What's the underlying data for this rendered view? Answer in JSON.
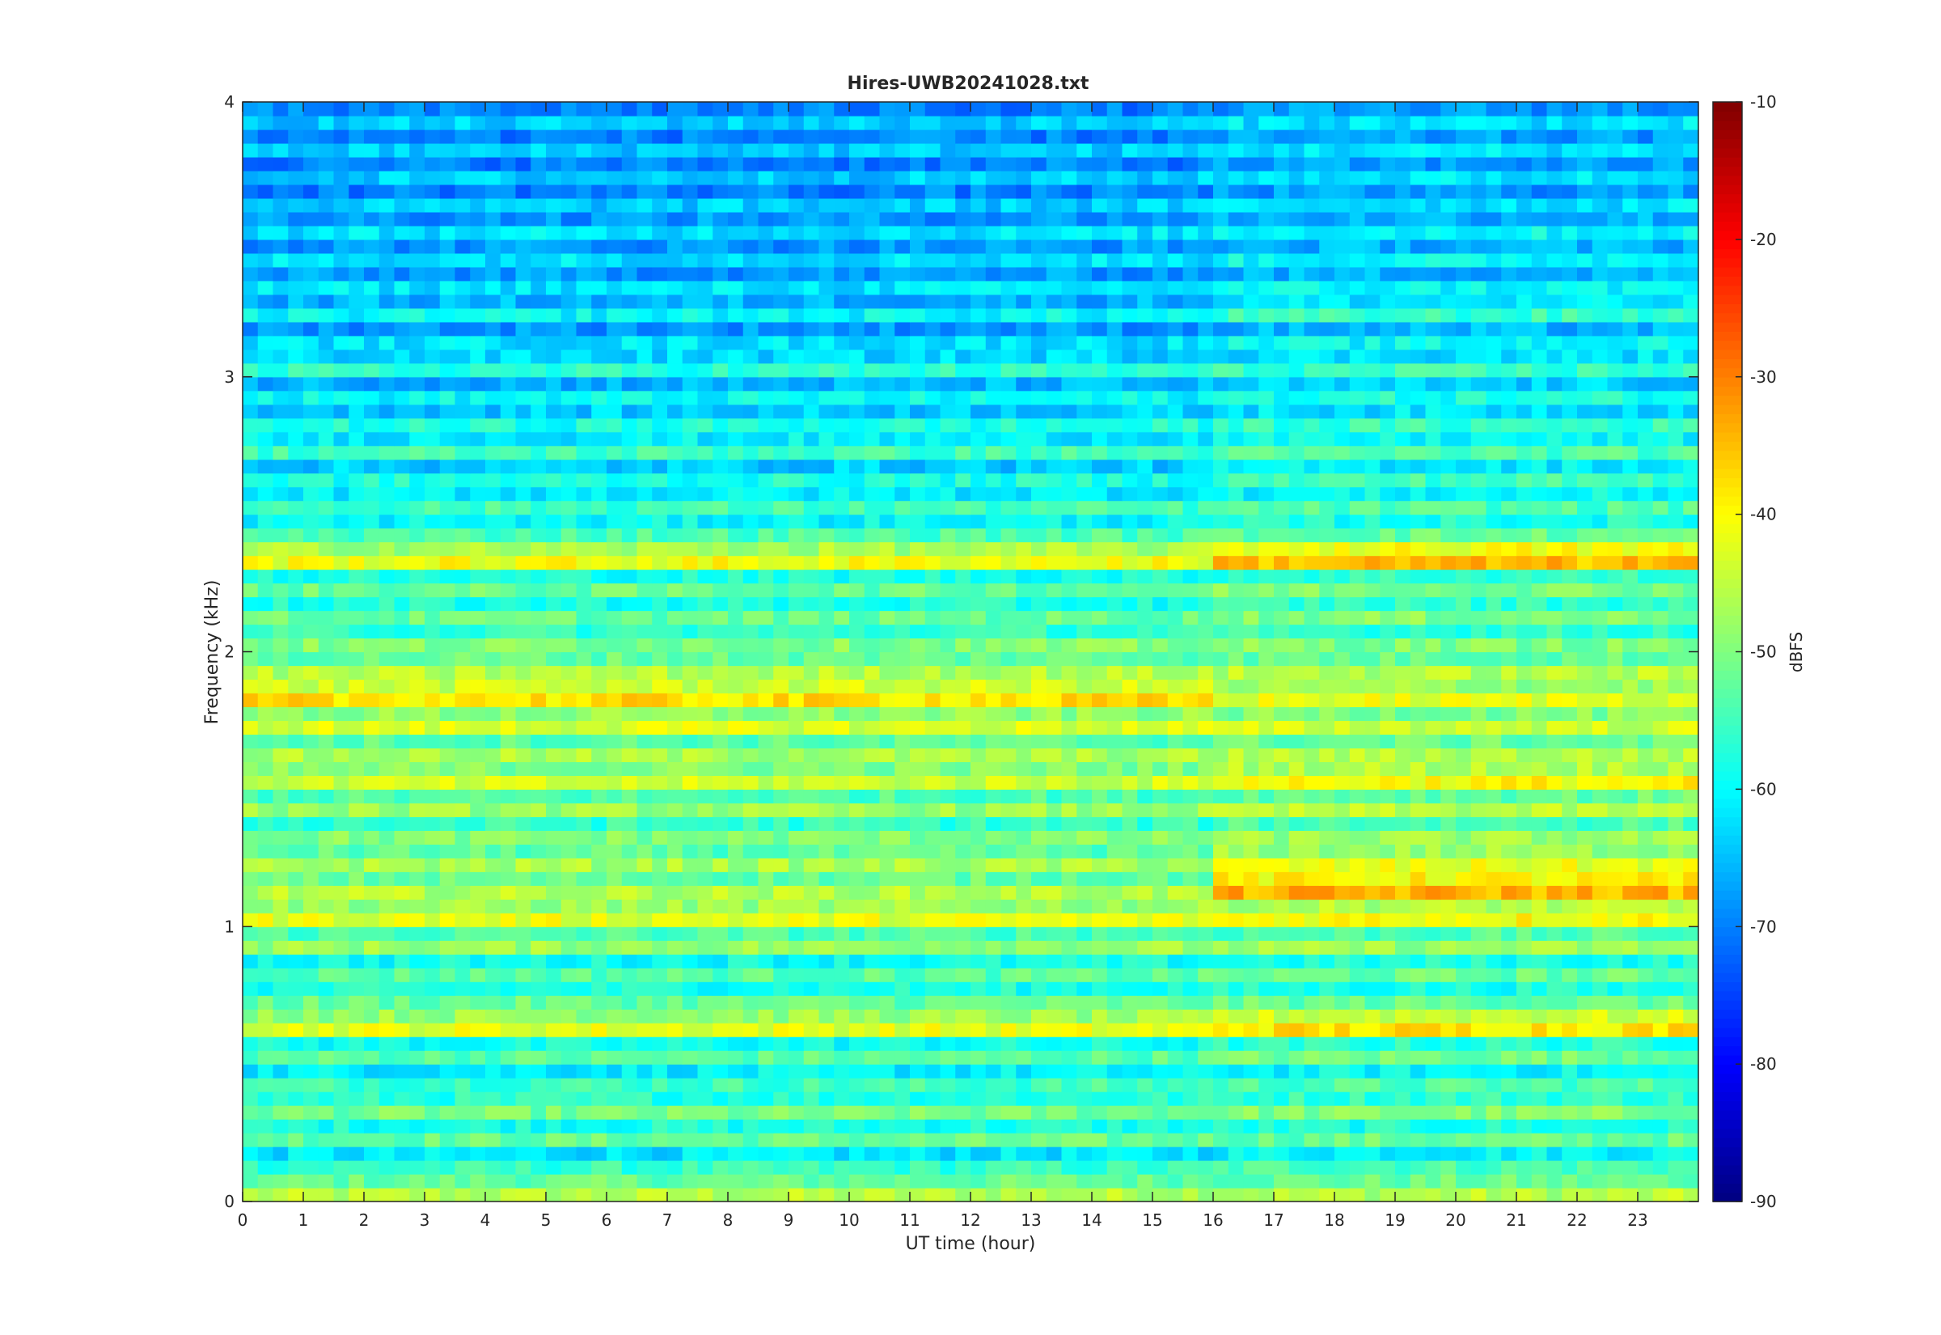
{
  "chart_data": {
    "type": "heatmap",
    "title": "Hires-UWB20241028.txt",
    "xlabel": "UT time (hour)",
    "ylabel": "Frequency (kHz)",
    "xlim": [
      0,
      24
    ],
    "ylim": [
      0,
      4
    ],
    "x_ticks": [
      0,
      1,
      2,
      3,
      4,
      5,
      6,
      7,
      8,
      9,
      10,
      11,
      12,
      13,
      14,
      15,
      16,
      17,
      18,
      19,
      20,
      21,
      22,
      23
    ],
    "y_ticks": [
      0,
      1,
      2,
      3,
      4
    ],
    "colormap": "jet",
    "colorbar": {
      "label": "dBFS",
      "range": [
        -90,
        -10
      ],
      "ticks": [
        -10,
        -20,
        -30,
        -40,
        -50,
        -60,
        -70,
        -80,
        -90
      ]
    },
    "grid": false,
    "notes_band_levels_dbfs": {
      "frequency_khz": [
        0.05,
        0.15,
        0.25,
        0.35,
        0.45,
        0.55,
        0.65,
        0.75,
        0.85,
        0.95,
        1.05,
        1.15,
        1.25,
        1.35,
        1.45,
        1.55,
        1.65,
        1.75,
        1.85,
        1.95,
        2.05,
        2.15,
        2.25,
        2.35,
        2.45,
        2.55,
        2.65,
        2.75,
        2.85,
        2.95,
        3.05,
        3.15,
        3.25,
        3.35,
        3.45,
        3.55,
        3.65,
        3.75,
        3.85,
        3.95
      ],
      "level_0_to_16h": [
        -46,
        -56,
        -52,
        -51,
        -55,
        -53,
        -42,
        -52,
        -53,
        -48,
        -42,
        -46,
        -47,
        -50,
        -48,
        -44,
        -47,
        -43,
        -38,
        -46,
        -50,
        -52,
        -52,
        -41,
        -54,
        -55,
        -58,
        -55,
        -58,
        -60,
        -57,
        -62,
        -60,
        -62,
        -62,
        -62,
        -64,
        -64,
        -64,
        -64
      ],
      "level_16_to_24h": [
        -46,
        -54,
        -52,
        -50,
        -54,
        -51,
        -38,
        -52,
        -52,
        -48,
        -40,
        -34,
        -42,
        -48,
        -46,
        -40,
        -46,
        -44,
        -42,
        -46,
        -50,
        -50,
        -50,
        -35,
        -52,
        -54,
        -55,
        -54,
        -56,
        -58,
        -56,
        -60,
        -56,
        -60,
        -60,
        -60,
        -62,
        -62,
        -62,
        -62
      ]
    }
  }
}
